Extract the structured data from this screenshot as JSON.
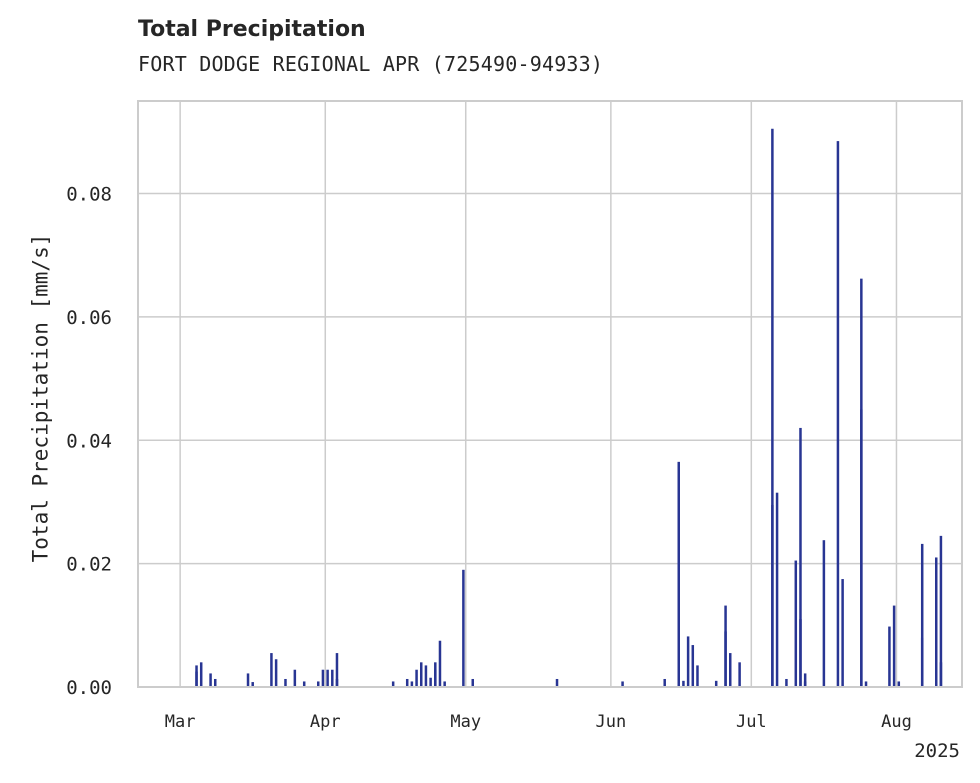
{
  "chart_data": {
    "type": "bar",
    "title": "Total Precipitation",
    "subtitle": "FORT DODGE REGIONAL APR (725490-94933)",
    "ylabel": "Total Precipitation [mm/s]",
    "xlabel": "",
    "ylim": [
      0,
      0.095
    ],
    "xlim": [
      "2025-02-20",
      "2025-08-15"
    ],
    "yticks": [
      "0.00",
      "0.02",
      "0.04",
      "0.06",
      "0.08"
    ],
    "ytick_values": [
      0,
      0.02,
      0.04,
      0.06,
      0.08
    ],
    "xticks": [
      "Mar",
      "Apr",
      "May",
      "Jun",
      "Jul",
      "Aug"
    ],
    "xtick_dates": [
      "2025-03-01",
      "2025-04-01",
      "2025-05-01",
      "2025-06-01",
      "2025-07-01",
      "2025-08-01"
    ],
    "year_label": "2025",
    "grid": true,
    "color": "#283593",
    "points": [
      [
        "2025-03-04",
        0.0025
      ],
      [
        "2025-03-04",
        0.0035
      ],
      [
        "2025-03-05",
        0.004
      ],
      [
        "2025-03-07",
        0.0022
      ],
      [
        "2025-03-08",
        0.0013
      ],
      [
        "2025-03-15",
        0.0022
      ],
      [
        "2025-03-16",
        0.0008
      ],
      [
        "2025-03-20",
        0.0055
      ],
      [
        "2025-03-21",
        0.0045
      ],
      [
        "2025-03-23",
        0.0013
      ],
      [
        "2025-03-25",
        0.0028
      ],
      [
        "2025-03-27",
        0.0009
      ],
      [
        "2025-03-30",
        0.0009
      ],
      [
        "2025-03-31",
        0.0028
      ],
      [
        "2025-04-01",
        0.0028
      ],
      [
        "2025-04-02",
        0.0028
      ],
      [
        "2025-04-03",
        0.0013
      ],
      [
        "2025-04-03",
        0.0055
      ],
      [
        "2025-04-15",
        0.0009
      ],
      [
        "2025-04-18",
        0.0013
      ],
      [
        "2025-04-19",
        0.0009
      ],
      [
        "2025-04-20",
        0.0028
      ],
      [
        "2025-04-21",
        0.004
      ],
      [
        "2025-04-22",
        0.0035
      ],
      [
        "2025-04-23",
        0.0015
      ],
      [
        "2025-04-24",
        0.0028
      ],
      [
        "2025-04-24",
        0.004
      ],
      [
        "2025-04-25",
        0.0075
      ],
      [
        "2025-04-26",
        0.0009
      ],
      [
        "2025-04-30",
        0.019
      ],
      [
        "2025-05-02",
        0.0013
      ],
      [
        "2025-05-20",
        0.0013
      ],
      [
        "2025-06-03",
        0.0009
      ],
      [
        "2025-06-12",
        0.0013
      ],
      [
        "2025-06-15",
        0.0365
      ],
      [
        "2025-06-16",
        0.001
      ],
      [
        "2025-06-17",
        0.0082
      ],
      [
        "2025-06-18",
        0.0068
      ],
      [
        "2025-06-19",
        0.0035
      ],
      [
        "2025-06-23",
        0.001
      ],
      [
        "2025-06-25",
        0.0132
      ],
      [
        "2025-06-25",
        0.009
      ],
      [
        "2025-06-26",
        0.0055
      ],
      [
        "2025-06-28",
        0.004
      ],
      [
        "2025-07-05",
        0.0295
      ],
      [
        "2025-07-05",
        0.0905
      ],
      [
        "2025-07-06",
        0.0315
      ],
      [
        "2025-07-08",
        0.0013
      ],
      [
        "2025-07-10",
        0.0205
      ],
      [
        "2025-07-11",
        0.042
      ],
      [
        "2025-07-11",
        0.011
      ],
      [
        "2025-07-12",
        0.0022
      ],
      [
        "2025-07-12",
        0.0009
      ],
      [
        "2025-07-16",
        0.0238
      ],
      [
        "2025-07-19",
        0.0885
      ],
      [
        "2025-07-20",
        0.0175
      ],
      [
        "2025-07-24",
        0.0662
      ],
      [
        "2025-07-24",
        0.045
      ],
      [
        "2025-07-25",
        0.0009
      ],
      [
        "2025-07-30",
        0.0098
      ],
      [
        "2025-07-31",
        0.0132
      ],
      [
        "2025-08-01",
        0.0009
      ],
      [
        "2025-08-06",
        0.008
      ],
      [
        "2025-08-06",
        0.0232
      ],
      [
        "2025-08-09",
        0.021
      ],
      [
        "2025-08-10",
        0.0245
      ],
      [
        "2025-08-10",
        0.004
      ]
    ]
  }
}
